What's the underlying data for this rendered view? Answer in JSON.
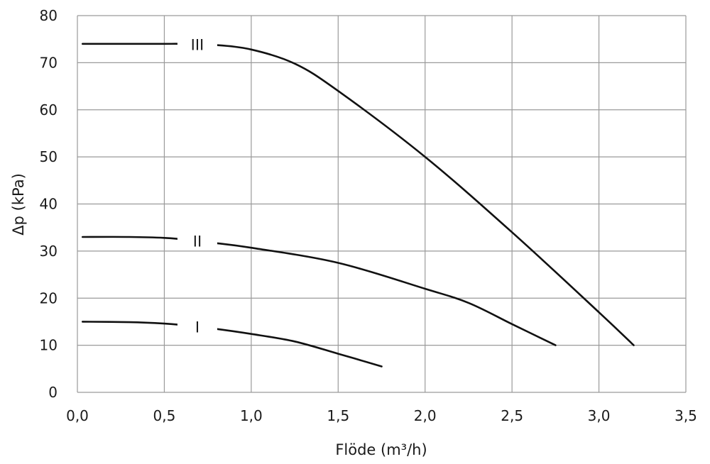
{
  "chart_data": {
    "type": "line",
    "xlabel": "Flöde (m³/h)",
    "ylabel": "Δp (kPa)",
    "xlim": [
      0,
      3.5
    ],
    "ylim": [
      0,
      80
    ],
    "grid": true,
    "x_ticks": [
      0,
      0.5,
      1.0,
      1.5,
      2.0,
      2.5,
      3.0,
      3.5
    ],
    "x_tick_labels": [
      "0,0",
      "0,5",
      "1,0",
      "1,5",
      "2,0",
      "2,5",
      "3,0",
      "3,5"
    ],
    "y_ticks": [
      0,
      10,
      20,
      30,
      40,
      50,
      60,
      70,
      80
    ],
    "y_tick_labels": [
      "0",
      "10",
      "20",
      "30",
      "40",
      "50",
      "60",
      "70",
      "80"
    ],
    "series": [
      {
        "name": "I",
        "x": [
          0.03,
          0.3,
          0.5,
          0.6,
          0.77,
          1.0,
          1.25,
          1.5,
          1.75
        ],
        "y": [
          15.0,
          14.9,
          14.6,
          14.3,
          13.6,
          12.4,
          10.8,
          8.2,
          5.5
        ]
      },
      {
        "name": "II",
        "x": [
          0.03,
          0.3,
          0.5,
          0.6,
          0.77,
          1.0,
          1.5,
          2.0,
          2.25,
          2.5,
          2.75
        ],
        "y": [
          33.0,
          33.0,
          32.8,
          32.5,
          31.8,
          30.7,
          27.5,
          22.0,
          19.0,
          14.5,
          10.0
        ]
      },
      {
        "name": "III",
        "x": [
          0.03,
          0.3,
          0.5,
          0.6,
          0.78,
          1.0,
          1.25,
          1.5,
          2.0,
          2.5,
          3.0,
          3.2
        ],
        "y": [
          74.0,
          74.0,
          74.0,
          74.0,
          73.8,
          72.8,
          69.8,
          64.0,
          50.0,
          34.0,
          17.0,
          10.0
        ]
      }
    ]
  }
}
